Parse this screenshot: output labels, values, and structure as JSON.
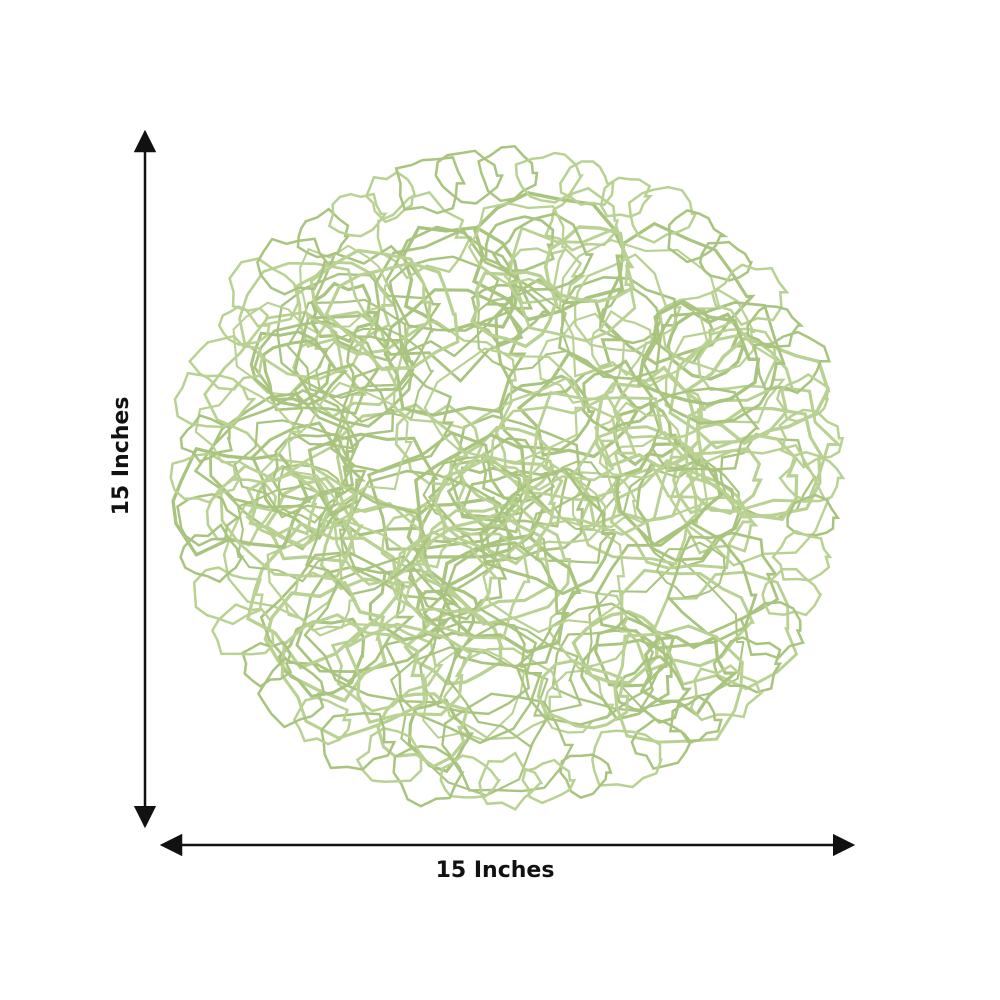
{
  "dimensions": {
    "height_label": "15 Inches",
    "width_label": "15 Inches"
  }
}
